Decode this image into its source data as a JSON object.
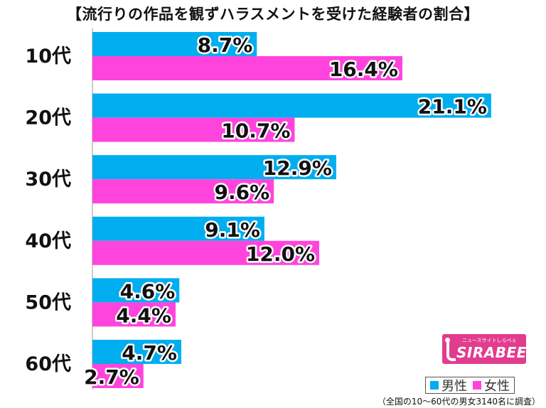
{
  "chart_data": {
    "type": "bar",
    "orientation": "horizontal",
    "title": "【流行りの作品を観ずハラスメントを受けた経験者の割合】",
    "categories": [
      "10代",
      "20代",
      "30代",
      "40代",
      "50代",
      "60代"
    ],
    "series": [
      {
        "name": "男性",
        "color": "#00aeef",
        "values": [
          8.7,
          21.1,
          12.9,
          9.1,
          4.6,
          4.7
        ],
        "labels": [
          "8.7%",
          "21.1%",
          "12.9%",
          "9.1%",
          "4.6%",
          "4.7%"
        ]
      },
      {
        "name": "女性",
        "color": "#ff44dd",
        "values": [
          16.4,
          10.7,
          9.6,
          12.0,
          4.4,
          2.7
        ],
        "labels": [
          "16.4%",
          "10.7%",
          "9.6%",
          "12.0%",
          "4.4%",
          "2.7%"
        ]
      }
    ],
    "xlim": [
      0,
      24
    ],
    "grid": false,
    "legend_position": "bottom-right"
  },
  "logo": {
    "tagline": "ニュースサイトしらべぇ",
    "wordmark": "SIRABEE",
    "color": "#e23c8e"
  },
  "footnote": "（全国の10〜60代の男女3140名に調査）"
}
